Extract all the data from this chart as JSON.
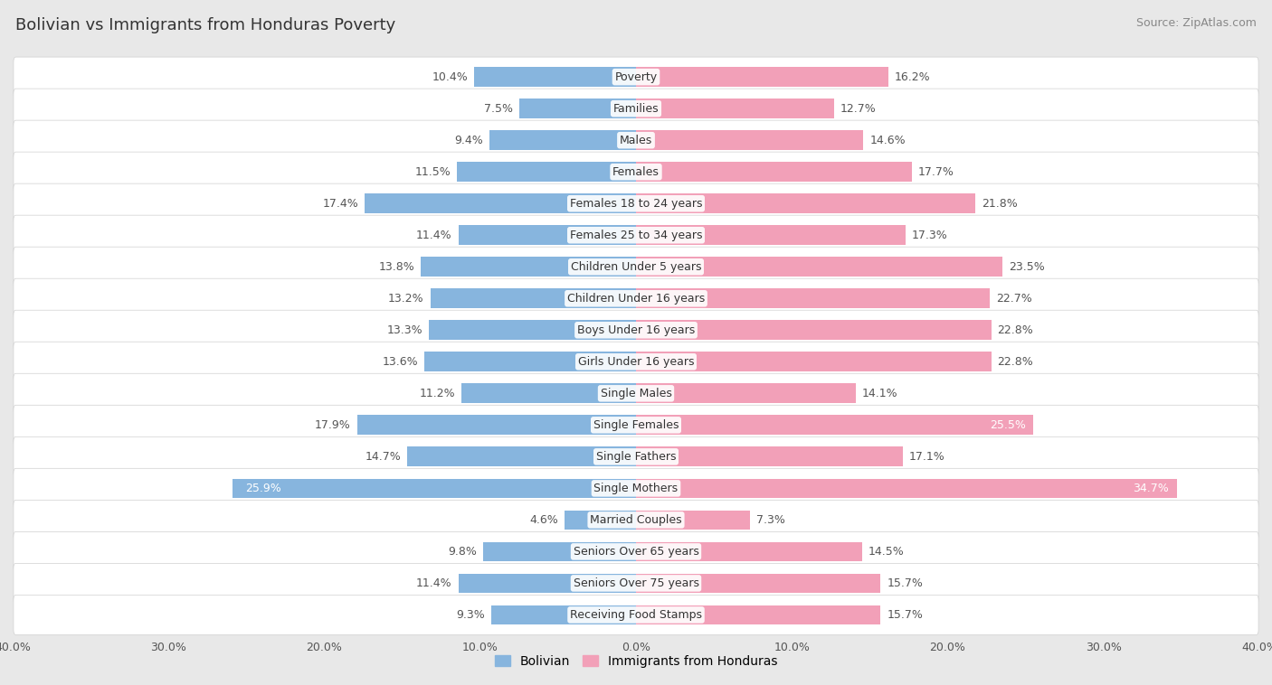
{
  "title": "Bolivian vs Immigrants from Honduras Poverty",
  "source": "Source: ZipAtlas.com",
  "categories": [
    "Poverty",
    "Families",
    "Males",
    "Females",
    "Females 18 to 24 years",
    "Females 25 to 34 years",
    "Children Under 5 years",
    "Children Under 16 years",
    "Boys Under 16 years",
    "Girls Under 16 years",
    "Single Males",
    "Single Females",
    "Single Fathers",
    "Single Mothers",
    "Married Couples",
    "Seniors Over 65 years",
    "Seniors Over 75 years",
    "Receiving Food Stamps"
  ],
  "bolivian": [
    10.4,
    7.5,
    9.4,
    11.5,
    17.4,
    11.4,
    13.8,
    13.2,
    13.3,
    13.6,
    11.2,
    17.9,
    14.7,
    25.9,
    4.6,
    9.8,
    11.4,
    9.3
  ],
  "honduras": [
    16.2,
    12.7,
    14.6,
    17.7,
    21.8,
    17.3,
    23.5,
    22.7,
    22.8,
    22.8,
    14.1,
    25.5,
    17.1,
    34.7,
    7.3,
    14.5,
    15.7,
    15.7
  ],
  "bolivian_color": "#87b5de",
  "honduras_color": "#f2a0b8",
  "bg_color": "#e8e8e8",
  "row_bg_even": "#f5f5f5",
  "row_bg_odd": "#ebebeb",
  "axis_max": 40.0,
  "label_fontsize": 9.0,
  "title_fontsize": 13,
  "source_fontsize": 9,
  "inside_label_categories": [
    "Single Mothers",
    "Single Females"
  ],
  "inside_label_left": [
    "Single Mothers"
  ]
}
